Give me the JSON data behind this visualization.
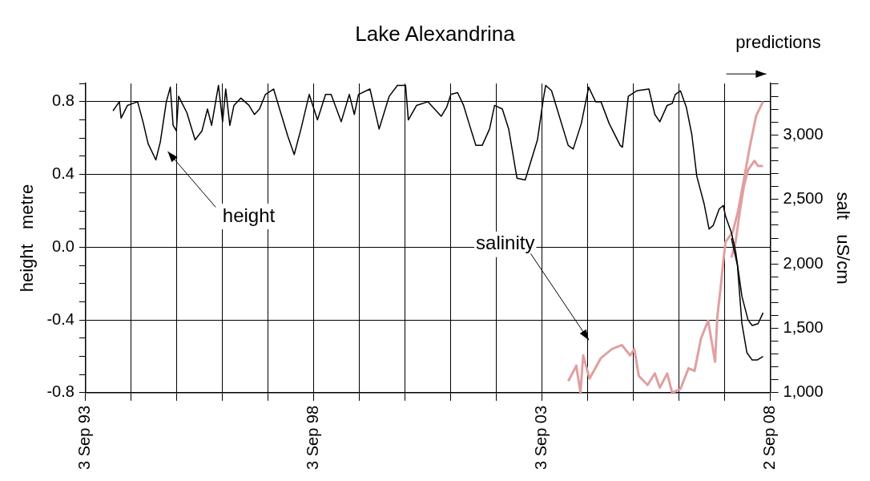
{
  "chart_data": {
    "type": "line",
    "title": "Lake Alexandrina",
    "ylabel": "height   metre",
    "y2label": "salt   uS/cm",
    "xlim": [
      "1993-09-03",
      "2008-09-02"
    ],
    "xticks": [
      {
        "value": "1993-09-03",
        "label": "3 Sep 93"
      },
      {
        "value": "1994-09-03",
        "label": null
      },
      {
        "value": "1995-09-03",
        "label": null
      },
      {
        "value": "1996-09-02",
        "label": null
      },
      {
        "value": "1997-09-03",
        "label": null
      },
      {
        "value": "1998-09-03",
        "label": "3 Sep 98"
      },
      {
        "value": "1999-09-03",
        "label": null
      },
      {
        "value": "2000-09-02",
        "label": null
      },
      {
        "value": "2001-09-03",
        "label": null
      },
      {
        "value": "2002-09-03",
        "label": null
      },
      {
        "value": "2003-09-03",
        "label": "3 Sep 03"
      },
      {
        "value": "2004-09-02",
        "label": null
      },
      {
        "value": "2005-09-03",
        "label": null
      },
      {
        "value": "2006-09-03",
        "label": null
      },
      {
        "value": "2007-09-03",
        "label": null
      },
      {
        "value": "2008-09-02",
        "label": "2 Sep 08"
      }
    ],
    "ylim": [
      -0.8,
      0.9
    ],
    "yticks": [
      {
        "value": -0.8,
        "label": "-0.8"
      },
      {
        "value": -0.7,
        "label": null
      },
      {
        "value": -0.6,
        "label": null
      },
      {
        "value": -0.5,
        "label": null
      },
      {
        "value": -0.4,
        "label": "-0.4"
      },
      {
        "value": -0.3,
        "label": null
      },
      {
        "value": -0.2,
        "label": null
      },
      {
        "value": -0.1,
        "label": null
      },
      {
        "value": 0,
        "label": "0.0"
      },
      {
        "value": 0.1,
        "label": null
      },
      {
        "value": 0.2,
        "label": null
      },
      {
        "value": 0.3,
        "label": null
      },
      {
        "value": 0.4,
        "label": "0.4"
      },
      {
        "value": 0.5,
        "label": null
      },
      {
        "value": 0.6,
        "label": null
      },
      {
        "value": 0.7,
        "label": null
      },
      {
        "value": 0.8,
        "label": "0.8"
      },
      {
        "value": 0.9,
        "label": null
      }
    ],
    "y2lim": [
      1000,
      3400
    ],
    "y2ticks": [
      {
        "value": 1000,
        "label": "1,000"
      },
      {
        "value": 1100,
        "label": null
      },
      {
        "value": 1200,
        "label": null
      },
      {
        "value": 1300,
        "label": null
      },
      {
        "value": 1400,
        "label": null
      },
      {
        "value": 1500,
        "label": "1,500"
      },
      {
        "value": 1600,
        "label": null
      },
      {
        "value": 1700,
        "label": null
      },
      {
        "value": 1800,
        "label": null
      },
      {
        "value": 1900,
        "label": null
      },
      {
        "value": 2000,
        "label": "2,000"
      },
      {
        "value": 2100,
        "label": null
      },
      {
        "value": 2200,
        "label": null
      },
      {
        "value": 2300,
        "label": null
      },
      {
        "value": 2400,
        "label": null
      },
      {
        "value": 2500,
        "label": "2,500"
      },
      {
        "value": 2600,
        "label": null
      },
      {
        "value": 2700,
        "label": null
      },
      {
        "value": 2800,
        "label": null
      },
      {
        "value": 2900,
        "label": null
      },
      {
        "value": 3000,
        "label": "3,000"
      },
      {
        "value": 3100,
        "label": null
      },
      {
        "value": 3200,
        "label": null
      },
      {
        "value": 3300,
        "label": null
      },
      {
        "value": 3400,
        "label": null
      }
    ],
    "grid": true,
    "legend": false,
    "marker": "none",
    "series": [
      {
        "color": "#000000",
        "x": [
          "1994-04-10",
          "1994-05-31",
          "1994-06-14",
          "1994-08-04",
          "1994-10-24",
          "1994-12-06",
          "1995-01-16",
          "1995-03-19",
          "1995-04-24",
          "1995-06-11",
          "1995-07-13",
          "1995-08-04",
          "1995-08-30",
          "1995-09-17",
          "1995-11-22",
          "1996-01-27",
          "1996-03-22",
          "1996-05-05",
          "1996-06-07",
          "1996-08-01",
          "1996-09-03",
          "1996-09-28",
          "1996-10-31",
          "1996-12-03",
          "1997-01-27",
          "1997-04-02",
          "1997-05-16",
          "1997-06-25",
          "1997-08-12",
          "1997-10-16",
          "1997-12-03",
          "1998-02-07",
          "1998-03-30",
          "1998-05-23",
          "1998-07-28",
          "1998-10-02",
          "1998-12-06",
          "1999-01-19",
          "1999-04-10",
          "1999-06-14",
          "1999-07-24",
          "1999-08-26",
          "1999-11-26",
          "2000-02-07",
          "2000-04-28",
          "2000-07-03",
          "2000-09-06",
          "2000-09-28",
          "2000-12-03",
          "2001-03-04",
          "2001-06-18",
          "2001-08-01",
          "2001-09-03",
          "2001-10-27",
          "2001-12-14",
          "2002-01-27",
          "2002-03-22",
          "2002-05-12",
          "2002-07-10",
          "2002-08-19",
          "2002-10-20",
          "2002-12-10",
          "2003-02-14",
          "2003-04-21",
          "2003-07-28",
          "2003-09-14",
          "2003-10-02",
          "2003-11-18",
          "2003-12-28",
          "2004-03-30",
          "2004-05-09",
          "2004-07-13",
          "2004-09-10",
          "2004-11-04",
          "2004-12-17",
          "2005-02-21",
          "2005-05-20",
          "2005-06-07",
          "2005-07-24",
          "2005-09-28",
          "2006-01-05",
          "2006-02-21",
          "2006-04-02",
          "2006-05-31",
          "2006-07-10",
          "2006-08-04",
          "2006-09-14",
          "2006-10-31",
          "2006-12-14",
          "2007-01-23",
          "2007-03-22",
          "2007-05-01",
          "2007-06-03",
          "2007-07-21",
          "2007-08-23",
          "2007-09-10",
          "2007-10-27",
          "2007-11-29",
          "2008-01-19",
          "2008-03-08",
          "2008-04-10",
          "2008-05-27",
          "2008-07-06"
        ],
        "values": [
          0.75,
          0.8,
          0.71,
          0.78,
          0.8,
          0.69,
          0.57,
          0.48,
          0.58,
          0.8,
          0.88,
          0.67,
          0.64,
          0.83,
          0.74,
          0.59,
          0.64,
          0.76,
          0.67,
          0.89,
          0.69,
          0.87,
          0.67,
          0.78,
          0.82,
          0.78,
          0.73,
          0.76,
          0.84,
          0.87,
          0.76,
          0.61,
          0.51,
          0.65,
          0.84,
          0.7,
          0.84,
          0.84,
          0.69,
          0.84,
          0.73,
          0.84,
          0.87,
          0.65,
          0.83,
          0.89,
          0.89,
          0.7,
          0.78,
          0.8,
          0.72,
          0.77,
          0.84,
          0.85,
          0.78,
          0.68,
          0.56,
          0.56,
          0.65,
          0.78,
          0.76,
          0.65,
          0.38,
          0.37,
          0.59,
          0.82,
          0.89,
          0.86,
          0.77,
          0.56,
          0.54,
          0.68,
          0.88,
          0.8,
          0.8,
          0.68,
          0.56,
          0.55,
          0.83,
          0.86,
          0.87,
          0.73,
          0.69,
          0.78,
          0.79,
          0.84,
          0.86,
          0.77,
          0.62,
          0.39,
          0.24,
          0.1,
          0.12,
          0.21,
          0.23,
          0.17,
          0.08,
          -0.02,
          -0.27,
          -0.4,
          -0.43,
          -0.42,
          -0.36
        ]
      },
      {
        "color": "#000000",
        "x": [
          "2007-10-27",
          "2007-12-14",
          "2008-01-19",
          "2008-02-28",
          "2008-04-10",
          "2008-05-20",
          "2008-07-06"
        ],
        "values": [
          0.05,
          -0.1,
          -0.42,
          -0.58,
          -0.62,
          -0.62,
          -0.6
        ]
      },
      {
        "color": "#e0a0a0",
        "axis": "y2",
        "x": [
          "2004-03-30",
          "2004-06-03",
          "2004-07-06",
          "2004-07-28",
          "2004-09-17",
          "2004-12-17",
          "2005-03-15",
          "2005-06-03",
          "2005-08-08",
          "2005-09-10",
          "2005-10-16",
          "2005-12-25",
          "2006-02-21",
          "2006-04-02",
          "2006-05-31",
          "2006-07-10",
          "2006-09-14",
          "2006-11-18",
          "2007-01-05",
          "2007-02-25",
          "2007-04-24",
          "2007-06-18",
          "2007-07-06",
          "2007-08-01",
          "2007-08-23",
          "2007-09-10",
          "2007-11-07",
          "2007-12-17",
          "2008-02-03",
          "2008-03-22",
          "2008-05-12",
          "2008-07-06"
        ],
        "values": [
          1090,
          1210,
          1000,
          1290,
          1110,
          1270,
          1340,
          1370,
          1290,
          1340,
          1130,
          1060,
          1150,
          1040,
          1150,
          1000,
          1030,
          1190,
          1170,
          1420,
          1560,
          1240,
          1590,
          1810,
          2020,
          2170,
          2250,
          2400,
          2650,
          2910,
          3150,
          3260
        ]
      },
      {
        "color": "#e0a0a0",
        "axis": "y2",
        "x": [
          "2007-10-27",
          "2007-11-29",
          "2008-01-01",
          "2008-02-03",
          "2008-03-08",
          "2008-04-28",
          "2008-05-27",
          "2008-07-06"
        ],
        "values": [
          2050,
          2170,
          2400,
          2600,
          2730,
          2800,
          2760,
          2760
        ]
      }
    ],
    "annotations": [
      "height",
      "salinity",
      "predictions"
    ]
  }
}
